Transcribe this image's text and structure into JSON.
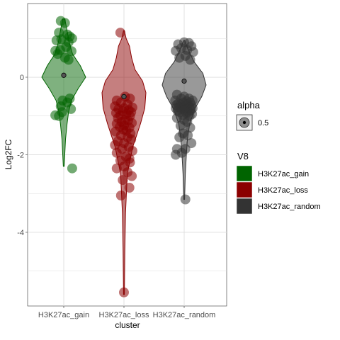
{
  "chart_data": {
    "type": "violin",
    "title": "",
    "xlabel": "cluster",
    "ylabel": "Log2FC",
    "ylim": [
      -5.9,
      1.9
    ],
    "yticks": [
      0,
      -2,
      -4
    ],
    "grid": true,
    "legend_position": "right",
    "categories": [
      "H3K27ac_gain",
      "H3K27ac_loss",
      "H3K27ac_random"
    ],
    "series": [
      {
        "name": "H3K27ac_gain",
        "color": "#006400",
        "median": 0.05,
        "range": [
          -2.3,
          1.5
        ],
        "density": [
          [
            -2.3,
            0.02
          ],
          [
            -1.6,
            0.08
          ],
          [
            -1.2,
            0.15
          ],
          [
            -0.9,
            0.22
          ],
          [
            -0.6,
            0.35
          ],
          [
            -0.3,
            0.65
          ],
          [
            0.0,
            1.0
          ],
          [
            0.3,
            0.75
          ],
          [
            0.6,
            0.4
          ],
          [
            0.9,
            0.25
          ],
          [
            1.2,
            0.15
          ],
          [
            1.5,
            0.05
          ]
        ],
        "points": [
          [
            -0.05,
            1.45
          ],
          [
            0.02,
            1.4
          ],
          [
            -0.08,
            1.15
          ],
          [
            0.06,
            1.1
          ],
          [
            0.1,
            1.05
          ],
          [
            0.14,
            1.0
          ],
          [
            -0.04,
            0.98
          ],
          [
            -0.12,
            0.95
          ],
          [
            0.08,
            0.9
          ],
          [
            0.04,
            0.78
          ],
          [
            -0.14,
            0.68
          ],
          [
            -0.06,
            0.7
          ],
          [
            0.13,
            0.67
          ],
          [
            -0.1,
            0.6
          ],
          [
            0.02,
            0.5
          ],
          [
            0.08,
            0.45
          ],
          [
            0.1,
            -0.55
          ],
          [
            -0.02,
            -0.6
          ],
          [
            0.06,
            -0.65
          ],
          [
            -0.05,
            -0.75
          ],
          [
            0.12,
            -0.82
          ],
          [
            -0.03,
            -0.9
          ],
          [
            -0.14,
            -0.98
          ],
          [
            -0.08,
            -1.0
          ],
          [
            0.14,
            -2.35
          ]
        ]
      },
      {
        "name": "H3K27ac_loss",
        "color": "#8b0000",
        "median": -0.5,
        "range": [
          -5.6,
          1.2
        ],
        "density": [
          [
            -5.6,
            0.02
          ],
          [
            -4.5,
            0.04
          ],
          [
            -3.5,
            0.07
          ],
          [
            -2.5,
            0.15
          ],
          [
            -1.8,
            0.4
          ],
          [
            -1.2,
            0.75
          ],
          [
            -0.8,
            0.95
          ],
          [
            -0.4,
            1.0
          ],
          [
            -0.1,
            0.85
          ],
          [
            0.2,
            0.5
          ],
          [
            0.5,
            0.35
          ],
          [
            0.8,
            0.25
          ],
          [
            1.0,
            0.1
          ],
          [
            1.2,
            0.02
          ]
        ],
        "points": [
          [
            -0.06,
            1.15
          ],
          [
            0.02,
            -0.5
          ],
          [
            0.1,
            -0.55
          ],
          [
            -0.12,
            -0.6
          ],
          [
            -0.05,
            -0.65
          ],
          [
            0.06,
            -0.7
          ],
          [
            -0.15,
            -0.75
          ],
          [
            0.14,
            -0.78
          ],
          [
            0.0,
            -0.8
          ],
          [
            -0.09,
            -0.82
          ],
          [
            0.08,
            -0.85
          ],
          [
            -0.02,
            -0.88
          ],
          [
            0.12,
            -0.9
          ],
          [
            -0.13,
            -0.92
          ],
          [
            0.04,
            -0.95
          ],
          [
            -0.06,
            -0.98
          ],
          [
            0.1,
            -1.0
          ],
          [
            -0.1,
            -1.05
          ],
          [
            0.02,
            -1.1
          ],
          [
            0.07,
            -1.12
          ],
          [
            -0.04,
            -1.15
          ],
          [
            0.13,
            -1.18
          ],
          [
            -0.12,
            -1.2
          ],
          [
            0.0,
            -1.25
          ],
          [
            -0.07,
            -1.28
          ],
          [
            0.09,
            -1.3
          ],
          [
            -0.01,
            -1.35
          ],
          [
            0.04,
            -1.38
          ],
          [
            -0.14,
            -1.4
          ],
          [
            0.11,
            -1.45
          ],
          [
            -0.05,
            -1.5
          ],
          [
            0.06,
            -1.55
          ],
          [
            0.12,
            -1.6
          ],
          [
            -0.1,
            -1.65
          ],
          [
            0.0,
            -1.7
          ],
          [
            -0.15,
            -1.75
          ],
          [
            0.08,
            -1.8
          ],
          [
            -0.03,
            -1.85
          ],
          [
            0.14,
            -1.9
          ],
          [
            -0.12,
            -1.95
          ],
          [
            0.03,
            -2.05
          ],
          [
            0.09,
            -2.1
          ],
          [
            -0.06,
            -2.15
          ],
          [
            0.1,
            -2.2
          ],
          [
            0.0,
            -2.3
          ],
          [
            -0.12,
            -2.35
          ],
          [
            0.06,
            -2.45
          ],
          [
            0.13,
            -2.55
          ],
          [
            -0.02,
            -2.65
          ],
          [
            0.09,
            -2.85
          ],
          [
            -0.05,
            -3.05
          ],
          [
            0.0,
            -5.55
          ]
        ]
      },
      {
        "name": "H3K27ac_random",
        "color": "#333333",
        "median": -0.1,
        "range": [
          -3.15,
          0.95
        ],
        "density": [
          [
            -3.15,
            0.02
          ],
          [
            -2.5,
            0.05
          ],
          [
            -2.0,
            0.1
          ],
          [
            -1.6,
            0.15
          ],
          [
            -1.2,
            0.25
          ],
          [
            -0.8,
            0.5
          ],
          [
            -0.5,
            0.8
          ],
          [
            -0.2,
            1.0
          ],
          [
            0.1,
            0.85
          ],
          [
            0.4,
            0.45
          ],
          [
            0.7,
            0.2
          ],
          [
            0.95,
            0.02
          ]
        ],
        "points": [
          [
            0.0,
            0.9
          ],
          [
            0.08,
            0.88
          ],
          [
            -0.1,
            0.85
          ],
          [
            0.12,
            0.8
          ],
          [
            -0.05,
            0.75
          ],
          [
            0.05,
            0.7
          ],
          [
            -0.14,
            0.68
          ],
          [
            0.15,
            0.65
          ],
          [
            0.02,
            0.55
          ],
          [
            -0.08,
            0.5
          ],
          [
            0.1,
            0.45
          ],
          [
            -0.12,
            -0.45
          ],
          [
            0.0,
            -0.5
          ],
          [
            0.08,
            -0.55
          ],
          [
            -0.05,
            -0.55
          ],
          [
            0.14,
            -0.6
          ],
          [
            -0.15,
            -0.6
          ],
          [
            0.04,
            -0.62
          ],
          [
            -0.02,
            -0.65
          ],
          [
            0.1,
            -0.65
          ],
          [
            -0.1,
            -0.68
          ],
          [
            0.06,
            -0.7
          ],
          [
            -0.06,
            -0.7
          ],
          [
            0.12,
            -0.72
          ],
          [
            -0.13,
            -0.72
          ],
          [
            0.02,
            -0.75
          ],
          [
            -0.03,
            -0.76
          ],
          [
            0.09,
            -0.78
          ],
          [
            -0.09,
            -0.78
          ],
          [
            0.14,
            -0.8
          ],
          [
            -0.14,
            -0.8
          ],
          [
            0.05,
            -0.82
          ],
          [
            -0.05,
            -0.82
          ],
          [
            0.0,
            -0.85
          ],
          [
            0.11,
            -0.85
          ],
          [
            -0.11,
            -0.87
          ],
          [
            0.07,
            -0.9
          ],
          [
            -0.07,
            -0.9
          ],
          [
            0.03,
            -0.92
          ],
          [
            0.13,
            -0.95
          ],
          [
            -0.02,
            -0.98
          ],
          [
            0.09,
            -1.0
          ],
          [
            -0.12,
            -1.05
          ],
          [
            0.0,
            -1.1
          ],
          [
            0.05,
            -1.15
          ],
          [
            -0.06,
            -1.25
          ],
          [
            0.1,
            -1.3
          ],
          [
            -0.02,
            -1.45
          ],
          [
            0.06,
            -1.5
          ],
          [
            -0.08,
            -1.55
          ],
          [
            0.12,
            -1.7
          ],
          [
            0.02,
            -1.85
          ],
          [
            -0.12,
            -1.85
          ],
          [
            -0.04,
            -1.95
          ],
          [
            -0.14,
            -2.0
          ],
          [
            0.02,
            -3.15
          ]
        ]
      }
    ],
    "legend": {
      "alpha": {
        "title": "alpha",
        "label": "0.5"
      },
      "fill": {
        "title": "V8",
        "items": [
          {
            "label": "H3K27ac_gain",
            "color": "#006400"
          },
          {
            "label": "H3K27ac_loss",
            "color": "#8b0000"
          },
          {
            "label": "H3K27ac_random",
            "color": "#333333"
          }
        ]
      }
    }
  }
}
